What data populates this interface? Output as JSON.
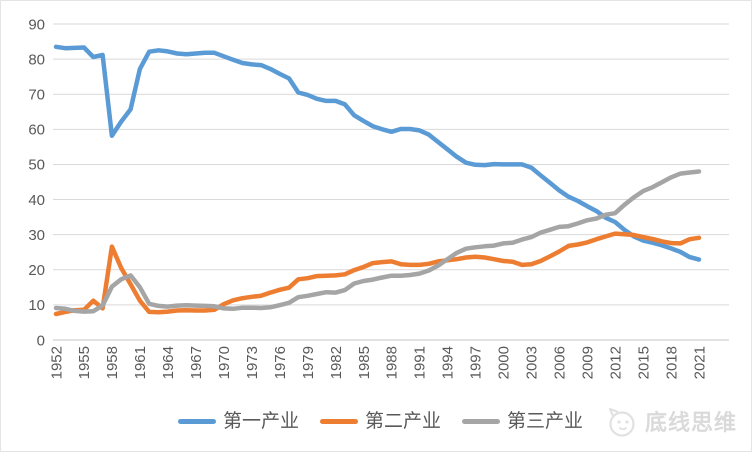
{
  "chart_data": {
    "type": "line",
    "title": "",
    "xlabel": "",
    "ylabel": "",
    "ylim": [
      0,
      90
    ],
    "y_tick_step": 10,
    "y_ticks": [
      0,
      10,
      20,
      30,
      40,
      50,
      60,
      70,
      80,
      90
    ],
    "x_tick_every_n_years": 3,
    "x_tick_labels": [
      "1952",
      "1955",
      "1958",
      "1961",
      "1964",
      "1967",
      "1970",
      "1973",
      "1976",
      "1979",
      "1982",
      "1985",
      "1988",
      "1991",
      "1994",
      "1997",
      "2000",
      "2003",
      "2006",
      "2009",
      "2012",
      "2015",
      "2018",
      "2021"
    ],
    "grid": true,
    "legend_position": "bottom",
    "years": [
      1952,
      1953,
      1954,
      1955,
      1956,
      1957,
      1958,
      1959,
      1960,
      1961,
      1962,
      1963,
      1964,
      1965,
      1966,
      1967,
      1968,
      1969,
      1970,
      1971,
      1972,
      1973,
      1974,
      1975,
      1976,
      1977,
      1978,
      1979,
      1980,
      1981,
      1982,
      1983,
      1984,
      1985,
      1986,
      1987,
      1988,
      1989,
      1990,
      1991,
      1992,
      1993,
      1994,
      1995,
      1996,
      1997,
      1998,
      1999,
      2000,
      2001,
      2002,
      2003,
      2004,
      2005,
      2006,
      2007,
      2008,
      2009,
      2010,
      2011,
      2012,
      2013,
      2014,
      2015,
      2016,
      2017,
      2018,
      2019,
      2020,
      2021
    ],
    "series": [
      {
        "name": "第一产业",
        "id": "primary-industry",
        "color": "#5B9BD5",
        "values": [
          83.5,
          83.1,
          83.2,
          83.3,
          80.6,
          81.2,
          58.2,
          62.2,
          65.7,
          77.2,
          82.1,
          82.5,
          82.2,
          81.6,
          81.4,
          81.6,
          81.8,
          81.8,
          80.8,
          79.8,
          78.9,
          78.5,
          78.3,
          77.2,
          75.8,
          74.5,
          70.5,
          69.8,
          68.7,
          68.1,
          68.1,
          67.1,
          64.0,
          62.4,
          60.9,
          60.0,
          59.3,
          60.1,
          60.1,
          59.7,
          58.5,
          56.4,
          54.3,
          52.2,
          50.5,
          49.9,
          49.8,
          50.1,
          50.0,
          50.0,
          50.0,
          49.1,
          46.9,
          44.8,
          42.6,
          40.8,
          39.6,
          38.1,
          36.7,
          34.8,
          33.6,
          31.4,
          29.5,
          28.3,
          27.7,
          27.0,
          26.1,
          25.1,
          23.6,
          22.9
        ]
      },
      {
        "name": "第二产业",
        "id": "secondary-industry",
        "color": "#ED7D31",
        "values": [
          7.4,
          8.0,
          8.5,
          8.6,
          11.2,
          9.0,
          26.6,
          20.5,
          15.9,
          11.2,
          8.0,
          7.9,
          8.1,
          8.4,
          8.5,
          8.4,
          8.4,
          8.6,
          10.2,
          11.3,
          11.9,
          12.3,
          12.6,
          13.5,
          14.3,
          14.9,
          17.3,
          17.6,
          18.2,
          18.3,
          18.4,
          18.7,
          19.9,
          20.8,
          21.9,
          22.2,
          22.4,
          21.6,
          21.4,
          21.4,
          21.7,
          22.4,
          22.7,
          23.0,
          23.5,
          23.7,
          23.5,
          23.0,
          22.5,
          22.3,
          21.4,
          21.6,
          22.5,
          23.8,
          25.2,
          26.8,
          27.2,
          27.8,
          28.7,
          29.5,
          30.3,
          30.1,
          29.9,
          29.3,
          28.8,
          28.1,
          27.6,
          27.5,
          28.7,
          29.1
        ]
      },
      {
        "name": "第三产业",
        "id": "tertiary-industry",
        "color": "#A5A5A5",
        "values": [
          9.1,
          8.9,
          8.3,
          8.1,
          8.2,
          9.8,
          15.2,
          17.3,
          18.4,
          15.0,
          10.3,
          9.7,
          9.5,
          9.8,
          9.9,
          9.8,
          9.7,
          9.6,
          9.0,
          8.9,
          9.2,
          9.2,
          9.1,
          9.3,
          9.9,
          10.6,
          12.2,
          12.6,
          13.1,
          13.6,
          13.5,
          14.2,
          16.1,
          16.8,
          17.2,
          17.8,
          18.3,
          18.3,
          18.5,
          18.9,
          19.8,
          21.2,
          23.0,
          24.8,
          26.0,
          26.4,
          26.7,
          26.9,
          27.5,
          27.7,
          28.6,
          29.3,
          30.6,
          31.4,
          32.2,
          32.4,
          33.2,
          34.1,
          34.6,
          35.7,
          36.1,
          38.5,
          40.6,
          42.4,
          43.5,
          44.9,
          46.3,
          47.4,
          47.7,
          48.0
        ]
      }
    ],
    "colors": {
      "gridline": "#d9d9d9",
      "axis_line": "#c6c6c6",
      "tick_label": "#595959",
      "background": "#ffffff"
    }
  },
  "watermark": {
    "text": "底线思维",
    "icon": "cat-logo-icon",
    "color": "#d7d7d7"
  }
}
